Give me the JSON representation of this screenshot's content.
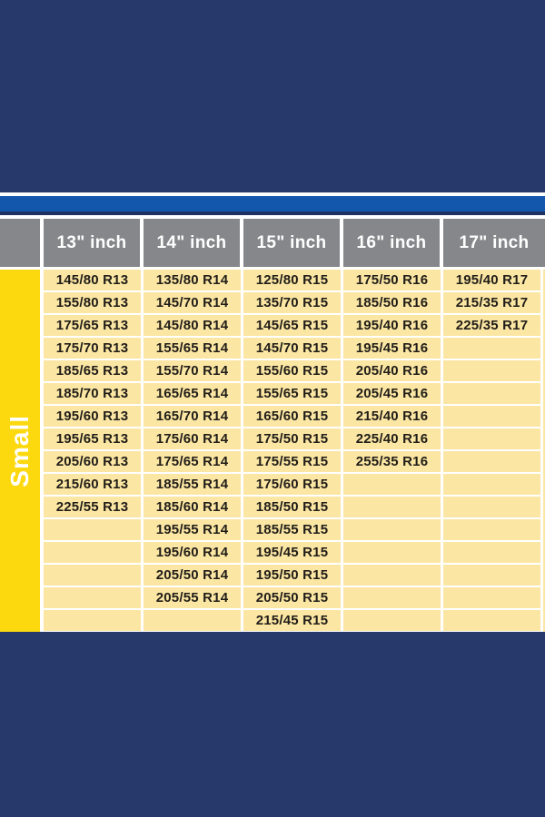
{
  "page": {
    "background_color": "#27396B",
    "accent_bar_color": "#1357AC",
    "header_cell_color": "#85878A",
    "body_cell_color": "#FBE6A3",
    "row_group_color": "#FCD80F"
  },
  "row_group": {
    "label": "Small"
  },
  "chart_data": {
    "type": "table",
    "row_group_label": "Small",
    "row_count": 16,
    "legend_position": "left",
    "columns": [
      {
        "label": "13\" inch",
        "sizes": [
          "145/80 R13",
          "155/80 R13",
          "175/65 R13",
          "175/70 R13",
          "185/65 R13",
          "185/70 R13",
          "195/60 R13",
          "195/65 R13",
          "205/60 R13",
          "215/60 R13",
          "225/55 R13"
        ]
      },
      {
        "label": "14\" inch",
        "sizes": [
          "135/80 R14",
          "145/70 R14",
          "145/80 R14",
          "155/65 R14",
          "155/70 R14",
          "165/65 R14",
          "165/70 R14",
          "175/60 R14",
          "175/65 R14",
          "185/55 R14",
          "185/60 R14",
          "195/55 R14",
          "195/60 R14",
          "205/50 R14",
          "205/55 R14"
        ]
      },
      {
        "label": "15\" inch",
        "sizes": [
          "125/80 R15",
          "135/70 R15",
          "145/65 R15",
          "145/70 R15",
          "155/60 R15",
          "155/65 R15",
          "165/60 R15",
          "175/50 R15",
          "175/55 R15",
          "175/60 R15",
          "185/50 R15",
          "185/55 R15",
          "195/45 R15",
          "195/50 R15",
          "205/50 R15",
          "215/45 R15"
        ]
      },
      {
        "label": "16\" inch",
        "sizes": [
          "175/50 R16",
          "185/50 R16",
          "195/40 R16",
          "195/45 R16",
          "205/40 R16",
          "205/45 R16",
          "215/40 R16",
          "225/40 R16",
          "255/35 R16"
        ]
      },
      {
        "label": "17\" inch",
        "sizes": [
          "195/40 R17",
          "215/35 R17",
          "225/35 R17"
        ]
      }
    ]
  }
}
